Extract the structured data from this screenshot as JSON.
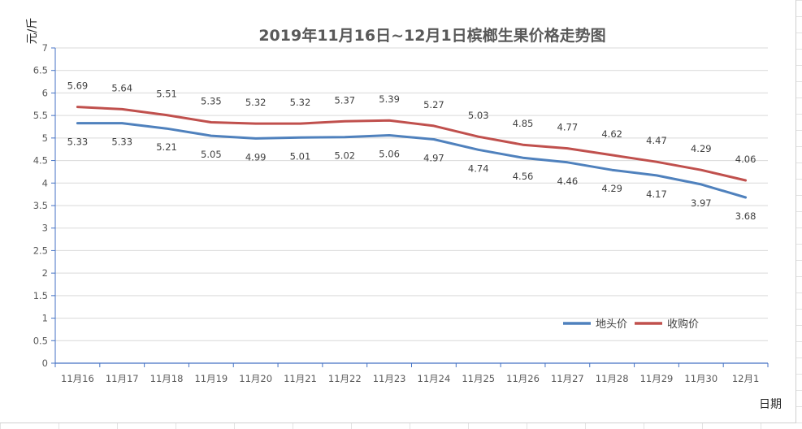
{
  "chart_data": {
    "type": "line",
    "title": "2019年11月16日~12月1日槟榔生果价格走势图",
    "xlabel": "日期",
    "ylabel": "元/斤",
    "ylim": [
      0,
      7
    ],
    "ytick_step": 0.5,
    "grid": true,
    "legend_position": "bottom-right",
    "categories": [
      "11月16",
      "11月17",
      "11月18",
      "11月19",
      "11月20",
      "11月21",
      "11月22",
      "11月23",
      "11月24",
      "11月25",
      "11月26",
      "11月27",
      "11月28",
      "11月29",
      "11月30",
      "12月1"
    ],
    "series": [
      {
        "name": "地头价",
        "color": "#4f81bd",
        "label_position": "below",
        "values": [
          5.33,
          5.33,
          5.21,
          5.05,
          4.99,
          5.01,
          5.02,
          5.06,
          4.97,
          4.74,
          4.56,
          4.46,
          4.29,
          4.17,
          3.97,
          3.68
        ]
      },
      {
        "name": "收购价",
        "color": "#c0504d",
        "label_position": "above",
        "values": [
          5.69,
          5.64,
          5.51,
          5.35,
          5.32,
          5.32,
          5.37,
          5.39,
          5.27,
          5.03,
          4.85,
          4.77,
          4.62,
          4.47,
          4.29,
          4.06
        ]
      }
    ]
  }
}
